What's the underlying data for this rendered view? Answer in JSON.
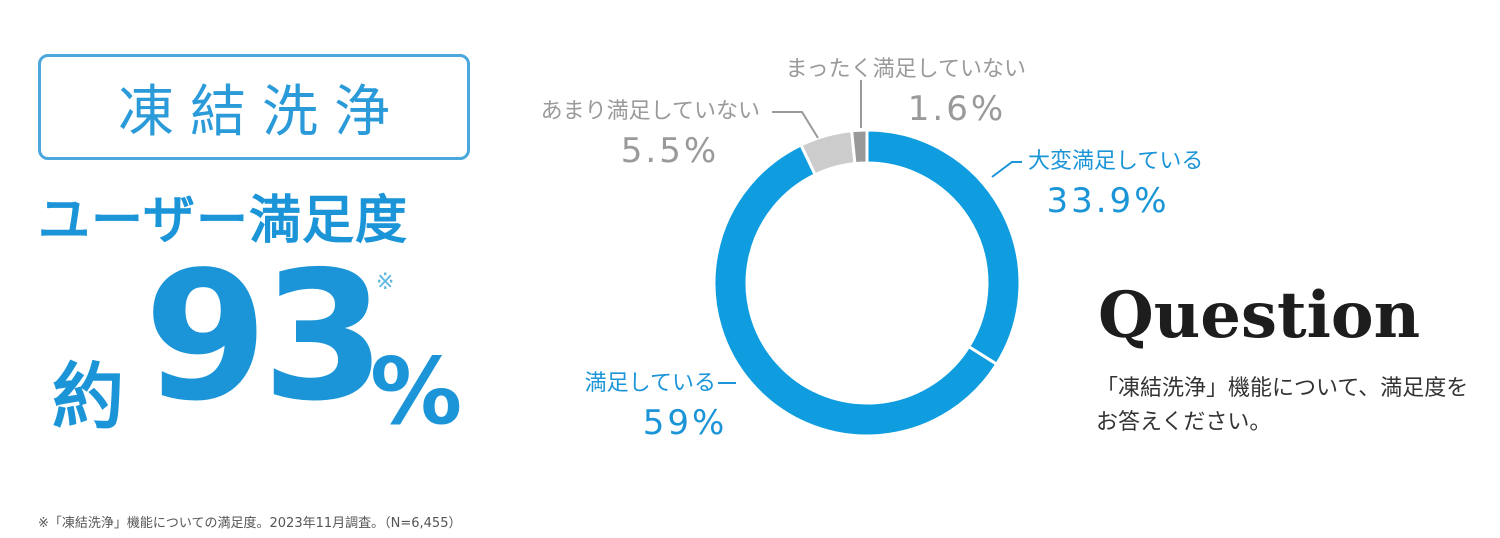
{
  "headline": {
    "box_title": "凍結洗浄",
    "subtitle": "ユーザー満足度",
    "prefix": "約",
    "number": "93",
    "unit": "%",
    "note_mark": "※"
  },
  "question": {
    "heading": "Question",
    "text": "「凍結洗浄」機能について、満足度をお答えください。"
  },
  "footnote": "※「凍結洗浄」機能についての満足度。2023年11月調査。（N=6,455）",
  "colors": {
    "primary": "#1b95d8",
    "donut_main": "#0f9de0",
    "gray_light": "#cccccc",
    "gray_dark": "#999999",
    "label_gray": "#9a9a9a"
  },
  "chart_data": {
    "type": "pie",
    "variant": "donut",
    "categories": [
      "大変満足している",
      "満足している",
      "あまり満足していない",
      "まったく満足していない"
    ],
    "values": [
      33.9,
      59,
      5.5,
      1.6
    ],
    "value_labels": [
      "33.9%",
      "59%",
      "5.5%",
      "1.6%"
    ],
    "slice_colors": [
      "#0f9de0",
      "#0f9de0",
      "#cccccc",
      "#999999"
    ],
    "label_colors": [
      "#1b95d8",
      "#1b95d8",
      "#9a9a9a",
      "#9a9a9a"
    ],
    "start": "top",
    "direction": "clockwise"
  }
}
